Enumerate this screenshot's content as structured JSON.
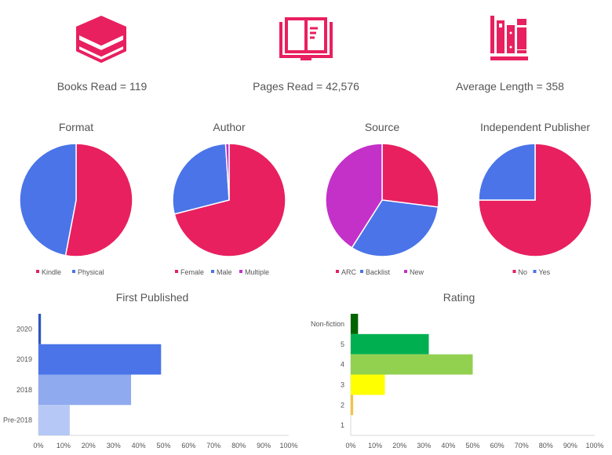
{
  "kpis": [
    {
      "label": "Books Read = 119",
      "icon": "book-stack-icon"
    },
    {
      "label": "Pages Read = 42,576",
      "icon": "open-book-icon"
    },
    {
      "label": "Average Length = 358",
      "icon": "bookshelf-icon"
    }
  ],
  "colors": {
    "accent": "#E8205F",
    "blue": "#4A74E8",
    "purple": "#C431C8"
  },
  "chart_data": [
    {
      "type": "pie",
      "title": "Format",
      "legend": "bottom",
      "labels": [
        "Kindle",
        "Physical"
      ],
      "values": [
        53,
        47
      ],
      "colors": [
        "#E8205F",
        "#4A74E8"
      ]
    },
    {
      "type": "pie",
      "title": "Author",
      "legend": "bottom",
      "labels": [
        "Female",
        "Male",
        "Multiple"
      ],
      "values": [
        71,
        28,
        1
      ],
      "colors": [
        "#E8205F",
        "#4A74E8",
        "#C431C8"
      ]
    },
    {
      "type": "pie",
      "title": "Source",
      "legend": "bottom",
      "labels": [
        "ARC",
        "Backlist",
        "New"
      ],
      "values": [
        27,
        32,
        41
      ],
      "colors": [
        "#E8205F",
        "#4A74E8",
        "#C431C8"
      ]
    },
    {
      "type": "pie",
      "title": "Independent Publisher",
      "legend": "bottom",
      "labels": [
        "No",
        "Yes"
      ],
      "values": [
        75,
        25
      ],
      "colors": [
        "#E8205F",
        "#4A74E8"
      ]
    },
    {
      "type": "bar",
      "orientation": "horizontal",
      "title": "First Published",
      "categories": [
        "2020",
        "2019",
        "2018",
        "Pre-2018"
      ],
      "values": [
        1,
        49,
        37,
        12.5
      ],
      "colors": [
        "#2F55C0",
        "#4A74E8",
        "#8FAAEF",
        "#B6C8F5"
      ],
      "xlim": [
        0,
        100
      ],
      "xticks": [
        "0%",
        "10%",
        "20%",
        "30%",
        "40%",
        "50%",
        "60%",
        "70%",
        "80%",
        "90%",
        "100%"
      ]
    },
    {
      "type": "bar",
      "orientation": "horizontal",
      "title": "Rating",
      "categories": [
        "Non-fiction",
        "5",
        "4",
        "3",
        "2",
        "1"
      ],
      "values": [
        3,
        32,
        50,
        14,
        1,
        0
      ],
      "colors": [
        "#006400",
        "#00B050",
        "#92D050",
        "#FFFF00",
        "#F4C242",
        "#cccccc"
      ],
      "xlim": [
        0,
        100
      ],
      "xticks": [
        "0%",
        "10%",
        "20%",
        "30%",
        "40%",
        "50%",
        "60%",
        "70%",
        "80%",
        "90%",
        "100%"
      ]
    }
  ]
}
